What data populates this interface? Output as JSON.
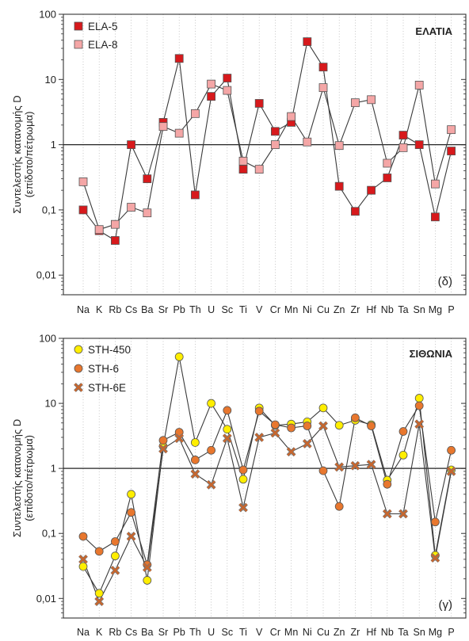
{
  "chart_data": [
    {
      "type": "line",
      "panel_label": "(δ)",
      "region_label": "ΕΛΑΤΙΑ",
      "ylabel": "Συντελεστής κατανομής D",
      "ylabel2": "(επίδοτο/πέτρωμα)",
      "yscale": "log",
      "ylim": [
        0.005,
        100
      ],
      "yticks": [
        "100",
        "10",
        "1",
        "0,1",
        "0,01"
      ],
      "reference_line": 1,
      "categories": [
        "Na",
        "K",
        "Rb",
        "Cs",
        "Ba",
        "Sr",
        "Pb",
        "Th",
        "U",
        "Sc",
        "Ti",
        "V",
        "Cr",
        "Mn",
        "Ni",
        "Cu",
        "Zn",
        "Zr",
        "Hf",
        "Nb",
        "Ta",
        "Sn",
        "Mg",
        "P"
      ],
      "series": [
        {
          "name": "ELA-5",
          "marker": "square",
          "color": "#d7191c",
          "values": [
            0.1,
            0.048,
            0.034,
            1.0,
            0.3,
            2.2,
            21,
            0.17,
            5.5,
            10.5,
            0.42,
            4.3,
            1.6,
            2.2,
            38,
            15.5,
            0.23,
            0.095,
            0.2,
            0.31,
            1.4,
            1.0,
            0.078,
            0.8
          ]
        },
        {
          "name": "ELA-8",
          "marker": "square",
          "color": "#f4a6a6",
          "values": [
            0.27,
            0.05,
            0.06,
            0.11,
            0.09,
            1.9,
            1.5,
            3.0,
            8.5,
            6.8,
            0.56,
            0.42,
            1.0,
            2.7,
            1.1,
            7.5,
            0.97,
            4.4,
            4.9,
            0.52,
            0.9,
            8.2,
            0.25,
            1.7
          ]
        }
      ]
    },
    {
      "type": "line",
      "panel_label": "(γ)",
      "region_label": "ΣΙΘΩΝΙΑ",
      "ylabel": "Συντελεστής κατανομής D",
      "ylabel2": "(επίδοτο/πέτρωμα)",
      "yscale": "log",
      "ylim": [
        0.005,
        100
      ],
      "yticks": [
        "100",
        "10",
        "1",
        "0,1",
        "0,01"
      ],
      "reference_line": 1,
      "categories": [
        "Na",
        "K",
        "Rb",
        "Cs",
        "Ba",
        "Sr",
        "Pb",
        "Th",
        "U",
        "Sc",
        "Ti",
        "V",
        "Cr",
        "Mn",
        "Ni",
        "Cu",
        "Zn",
        "Zr",
        "Hf",
        "Nb",
        "Ta",
        "Sn",
        "Mg",
        "P"
      ],
      "series": [
        {
          "name": "STH-450",
          "marker": "circle",
          "color": "#ffee00",
          "values": [
            0.031,
            0.012,
            0.045,
            0.4,
            0.019,
            2.2,
            52,
            2.5,
            10,
            4.0,
            0.68,
            8.5,
            4.6,
            4.8,
            5.2,
            8.5,
            4.6,
            5.5,
            4.7,
            0.66,
            1.6,
            12,
            0.046,
            0.95
          ]
        },
        {
          "name": "STH-6",
          "marker": "circle",
          "color": "#e8772e",
          "values": [
            0.09,
            0.053,
            0.075,
            0.21,
            0.033,
            2.7,
            3.6,
            1.35,
            1.9,
            7.8,
            0.95,
            7.6,
            4.7,
            4.2,
            4.5,
            0.92,
            0.26,
            6.0,
            4.5,
            0.57,
            3.7,
            9.2,
            0.15,
            1.9
          ]
        },
        {
          "name": "STH-6E",
          "marker": "x",
          "color": "#c8662d",
          "values": [
            0.04,
            0.009,
            0.027,
            0.09,
            0.03,
            2.0,
            2.9,
            0.82,
            0.56,
            2.9,
            0.25,
            3.0,
            3.5,
            1.8,
            2.4,
            4.5,
            1.05,
            1.1,
            1.15,
            0.2,
            0.2,
            4.8,
            0.042,
            0.9
          ]
        }
      ]
    }
  ]
}
